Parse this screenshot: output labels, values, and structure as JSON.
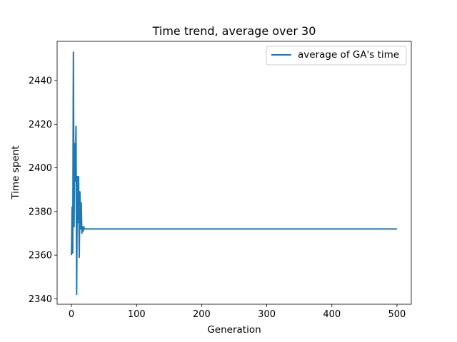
{
  "chart_data": {
    "type": "line",
    "title": "Time trend, average over 30",
    "xlabel": "Generation",
    "ylabel": "Time spent",
    "xlim": [
      -22,
      522
    ],
    "ylim": [
      2337.5,
      2458
    ],
    "xticks": [
      0,
      100,
      200,
      300,
      400,
      500
    ],
    "yticks": [
      2340,
      2360,
      2380,
      2400,
      2420,
      2440
    ],
    "grid": false,
    "legend_position": "top-right",
    "series": [
      {
        "name": "average of GA's time",
        "color": "#1f77b4",
        "points": [
          [
            0,
            2360
          ],
          [
            1,
            2382
          ],
          [
            2,
            2361
          ],
          [
            3,
            2453
          ],
          [
            4,
            2373
          ],
          [
            5,
            2411
          ],
          [
            6,
            2394
          ],
          [
            7,
            2419
          ],
          [
            8,
            2342
          ],
          [
            9,
            2396
          ],
          [
            10,
            2375
          ],
          [
            11,
            2396
          ],
          [
            12,
            2359
          ],
          [
            13,
            2389
          ],
          [
            14,
            2372
          ],
          [
            15,
            2384
          ],
          [
            16,
            2370
          ],
          [
            17,
            2373
          ],
          [
            18,
            2371
          ],
          [
            19,
            2373
          ],
          [
            20,
            2372
          ],
          [
            25,
            2372
          ],
          [
            30,
            2372
          ],
          [
            100,
            2372
          ],
          [
            200,
            2372
          ],
          [
            300,
            2372
          ],
          [
            400,
            2372
          ],
          [
            500,
            2372
          ]
        ]
      }
    ]
  }
}
